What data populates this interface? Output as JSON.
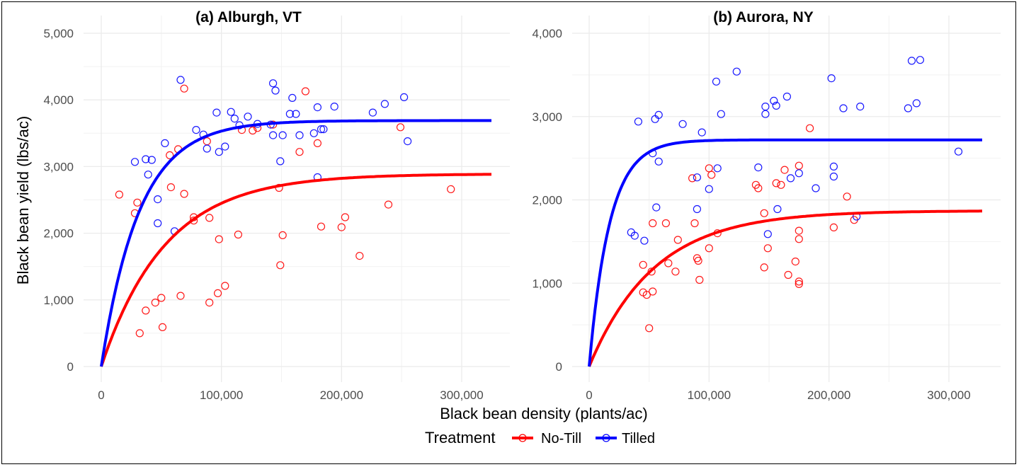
{
  "chart_data": [
    {
      "type": "scatter",
      "title": "(a) Alburgh, VT",
      "xlim": [
        0,
        320000
      ],
      "ylim": [
        0,
        5000
      ],
      "xticks": [
        "0",
        "100,000",
        "200,000",
        "300,000"
      ],
      "yticks": [
        "0",
        "1,000",
        "2,000",
        "3,000",
        "4,000",
        "5,000"
      ],
      "xtick_values": [
        0,
        100000,
        200000,
        300000
      ],
      "ytick_values": [
        0,
        1000,
        2000,
        3000,
        4000,
        5000
      ],
      "grid": true,
      "series": [
        {
          "name": "No-Till",
          "color": "#ff0000",
          "points": [
            [
              15000,
              2580
            ],
            [
              28000,
              2300
            ],
            [
              30000,
              2460
            ],
            [
              32000,
              500
            ],
            [
              37000,
              840
            ],
            [
              45000,
              960
            ],
            [
              50000,
              1030
            ],
            [
              51000,
              590
            ],
            [
              57000,
              3170
            ],
            [
              58000,
              2690
            ],
            [
              64000,
              3260
            ],
            [
              66000,
              1060
            ],
            [
              69000,
              4170
            ],
            [
              69000,
              2590
            ],
            [
              77000,
              2190
            ],
            [
              77000,
              2240
            ],
            [
              88000,
              3380
            ],
            [
              90000,
              960
            ],
            [
              90000,
              2230
            ],
            [
              97000,
              1100
            ],
            [
              98000,
              1910
            ],
            [
              103000,
              1210
            ],
            [
              114000,
              1980
            ],
            [
              117000,
              3550
            ],
            [
              126000,
              3540
            ],
            [
              130000,
              3580
            ],
            [
              143000,
              3630
            ],
            [
              148000,
              2680
            ],
            [
              149000,
              1520
            ],
            [
              151000,
              1970
            ],
            [
              165000,
              3220
            ],
            [
              170000,
              4130
            ],
            [
              180000,
              3350
            ],
            [
              183000,
              2100
            ],
            [
              200000,
              2090
            ],
            [
              203000,
              2240
            ],
            [
              215000,
              1660
            ],
            [
              239000,
              2430
            ],
            [
              249000,
              3590
            ],
            [
              291000,
              2660
            ]
          ],
          "curve": {
            "asymptote": 2890,
            "rate": 1.88e-05
          }
        },
        {
          "name": "Tilled",
          "color": "#0000ff",
          "points": [
            [
              28000,
              3070
            ],
            [
              37000,
              3110
            ],
            [
              39000,
              2880
            ],
            [
              42000,
              3100
            ],
            [
              47000,
              2510
            ],
            [
              47000,
              2150
            ],
            [
              53000,
              3350
            ],
            [
              61000,
              2030
            ],
            [
              66000,
              4300
            ],
            [
              79000,
              3550
            ],
            [
              85000,
              3480
            ],
            [
              88000,
              3270
            ],
            [
              96000,
              3810
            ],
            [
              98000,
              3220
            ],
            [
              103000,
              3300
            ],
            [
              108000,
              3820
            ],
            [
              111000,
              3720
            ],
            [
              115000,
              3620
            ],
            [
              122000,
              3750
            ],
            [
              130000,
              3640
            ],
            [
              141000,
              3630
            ],
            [
              143000,
              3470
            ],
            [
              143000,
              4250
            ],
            [
              145000,
              4140
            ],
            [
              149000,
              3080
            ],
            [
              151000,
              3470
            ],
            [
              157000,
              3790
            ],
            [
              159000,
              4030
            ],
            [
              162000,
              3790
            ],
            [
              165000,
              3470
            ],
            [
              177000,
              3500
            ],
            [
              180000,
              3890
            ],
            [
              180000,
              2840
            ],
            [
              183000,
              3560
            ],
            [
              185000,
              3560
            ],
            [
              194000,
              3900
            ],
            [
              226000,
              3810
            ],
            [
              236000,
              3940
            ],
            [
              252000,
              4040
            ],
            [
              255000,
              3380
            ]
          ],
          "curve": {
            "asymptote": 3690,
            "rate": 3.15e-05
          }
        }
      ]
    },
    {
      "type": "scatter",
      "title": "(b) Aurora, NY",
      "xlim": [
        0,
        330000
      ],
      "ylim": [
        0,
        4000
      ],
      "xticks": [
        "0",
        "100,000",
        "200,000",
        "300,000"
      ],
      "yticks": [
        "0",
        "1,000",
        "2,000",
        "3,000",
        "4,000"
      ],
      "xtick_values": [
        0,
        100000,
        200000,
        300000
      ],
      "ytick_values": [
        0,
        1000,
        2000,
        3000,
        4000
      ],
      "grid": true,
      "series": [
        {
          "name": "No-Till",
          "color": "#ff0000",
          "points": [
            [
              45000,
              1220
            ],
            [
              45000,
              890
            ],
            [
              48000,
              860
            ],
            [
              50000,
              460
            ],
            [
              52000,
              1140
            ],
            [
              53000,
              900
            ],
            [
              53000,
              1720
            ],
            [
              64000,
              1720
            ],
            [
              66000,
              1240
            ],
            [
              72000,
              1140
            ],
            [
              74000,
              1520
            ],
            [
              86000,
              2260
            ],
            [
              88000,
              1720
            ],
            [
              90000,
              1300
            ],
            [
              91000,
              1270
            ],
            [
              92000,
              1040
            ],
            [
              100000,
              1420
            ],
            [
              100000,
              2380
            ],
            [
              102000,
              2300
            ],
            [
              107000,
              1600
            ],
            [
              139000,
              2180
            ],
            [
              141000,
              2140
            ],
            [
              146000,
              1190
            ],
            [
              146000,
              1840
            ],
            [
              149000,
              1420
            ],
            [
              156000,
              2200
            ],
            [
              160000,
              2180
            ],
            [
              163000,
              2360
            ],
            [
              166000,
              1100
            ],
            [
              172000,
              1260
            ],
            [
              175000,
              1630
            ],
            [
              175000,
              1530
            ],
            [
              175000,
              1020
            ],
            [
              175000,
              990
            ],
            [
              175000,
              2410
            ],
            [
              184000,
              2860
            ],
            [
              204000,
              1670
            ],
            [
              215000,
              2040
            ],
            [
              221000,
              1760
            ]
          ],
          "curve": {
            "asymptote": 1870,
            "rate": 1.85e-05
          }
        },
        {
          "name": "Tilled",
          "color": "#0000ff",
          "points": [
            [
              35000,
              1610
            ],
            [
              38000,
              1570
            ],
            [
              41000,
              2940
            ],
            [
              46000,
              1510
            ],
            [
              53000,
              2560
            ],
            [
              55000,
              2970
            ],
            [
              56000,
              1910
            ],
            [
              58000,
              3020
            ],
            [
              58000,
              2460
            ],
            [
              78000,
              2910
            ],
            [
              90000,
              2270
            ],
            [
              90000,
              1890
            ],
            [
              94000,
              2810
            ],
            [
              100000,
              2130
            ],
            [
              106000,
              3420
            ],
            [
              107000,
              2380
            ],
            [
              110000,
              3030
            ],
            [
              123000,
              3540
            ],
            [
              141000,
              2390
            ],
            [
              147000,
              3030
            ],
            [
              147000,
              3120
            ],
            [
              149000,
              1590
            ],
            [
              154000,
              3190
            ],
            [
              156000,
              3130
            ],
            [
              157000,
              1890
            ],
            [
              165000,
              3240
            ],
            [
              168000,
              2260
            ],
            [
              175000,
              2320
            ],
            [
              189000,
              2140
            ],
            [
              202000,
              3460
            ],
            [
              204000,
              2400
            ],
            [
              204000,
              2280
            ],
            [
              212000,
              3100
            ],
            [
              223000,
              1800
            ],
            [
              226000,
              3120
            ],
            [
              266000,
              3100
            ],
            [
              269000,
              3670
            ],
            [
              273000,
              3160
            ],
            [
              276000,
              3680
            ],
            [
              308000,
              2580
            ]
          ],
          "curve": {
            "asymptote": 2720,
            "rate": 5.85e-05
          }
        }
      ]
    }
  ],
  "x_axis_label": "Black bean density (plants/ac)",
  "y_axis_label": "Black bean yield (lbs/ac)",
  "legend": {
    "title": "Treatment",
    "placement": "bottom",
    "items": [
      {
        "label": "No-Till",
        "color": "#ff0000"
      },
      {
        "label": "Tilled",
        "color": "#0000ff"
      }
    ]
  }
}
